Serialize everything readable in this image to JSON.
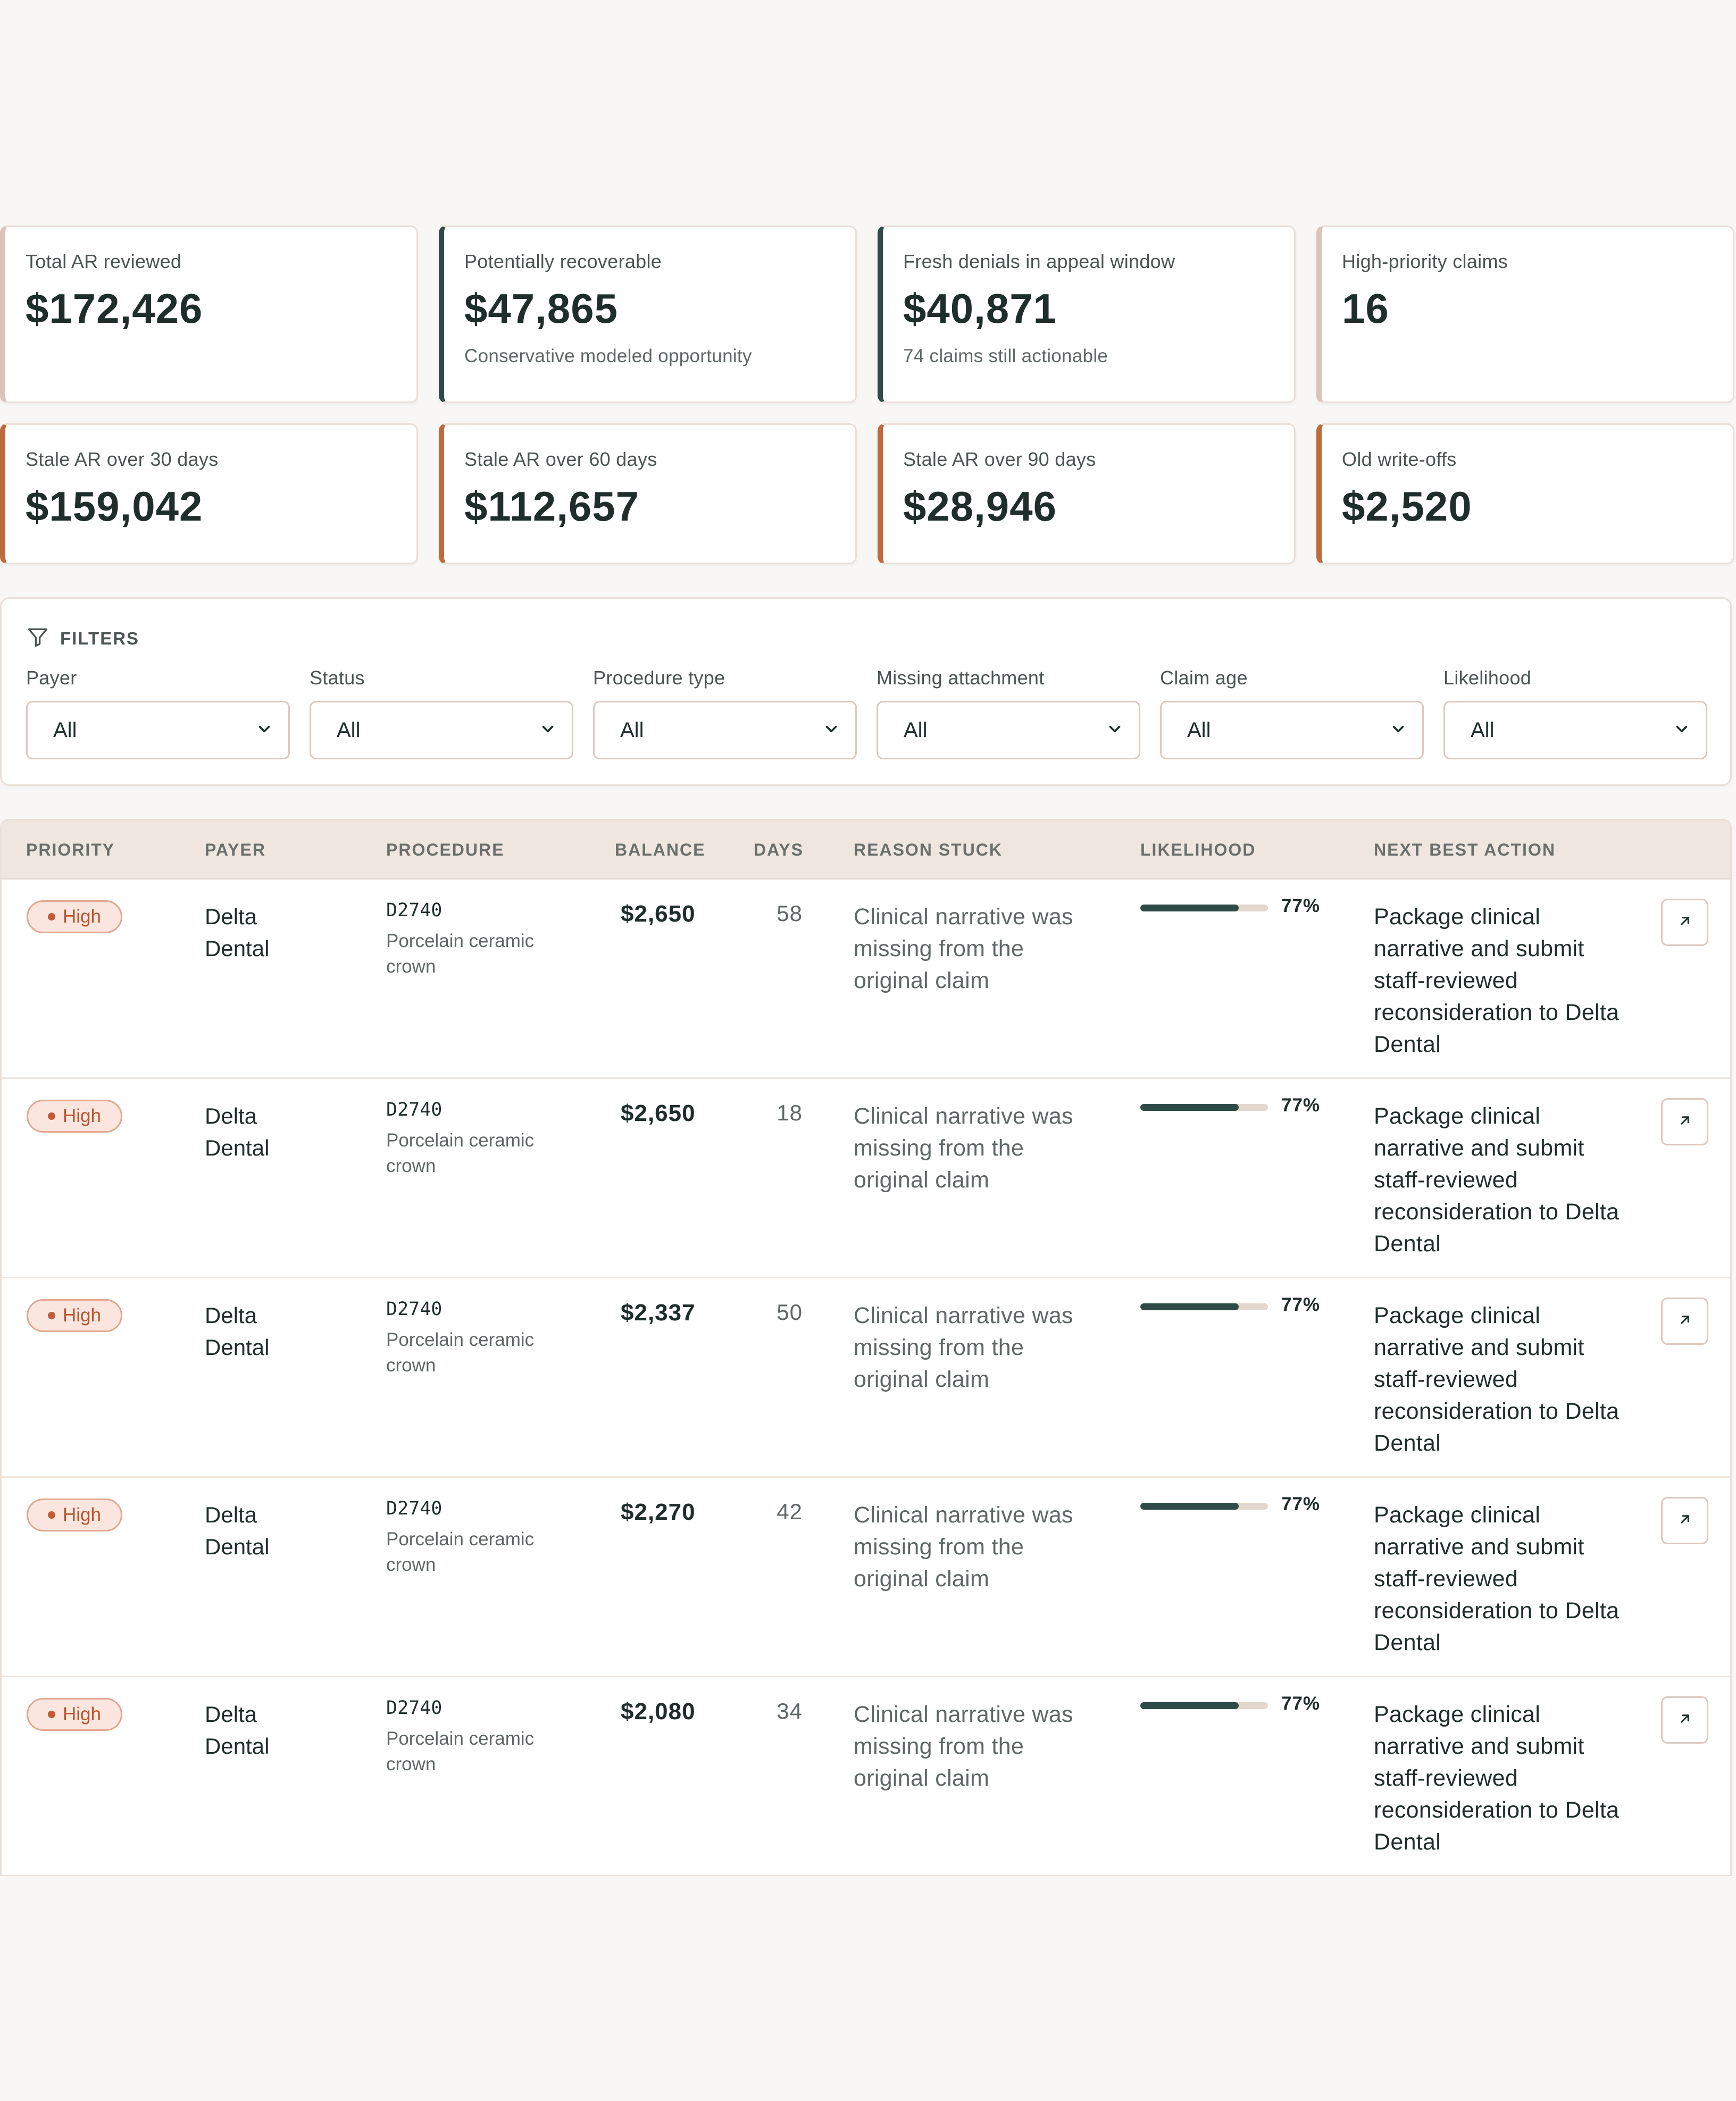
{
  "metrics_row1": [
    {
      "label": "Total AR reviewed",
      "value": "$172,426",
      "sub": "",
      "accent": "#dcc3b9"
    },
    {
      "label": "Potentially recoverable",
      "value": "$47,865",
      "sub": "Conservative modeled opportunity",
      "accent": "#2f4b48"
    },
    {
      "label": "Fresh denials in appeal window",
      "value": "$40,871",
      "sub": "74 claims still actionable",
      "accent": "#2f4b48"
    },
    {
      "label": "High-priority claims",
      "value": "16",
      "sub": "",
      "accent": "#dcc3b9"
    }
  ],
  "metrics_row2": [
    {
      "label": "Stale AR over 30 days",
      "value": "$159,042",
      "accent": "#bf6a3e"
    },
    {
      "label": "Stale AR over 60 days",
      "value": "$112,657",
      "accent": "#bf6a3e"
    },
    {
      "label": "Stale AR over 90 days",
      "value": "$28,946",
      "accent": "#bf6a3e"
    },
    {
      "label": "Old write-offs",
      "value": "$2,520",
      "accent": "#bf6a3e"
    }
  ],
  "filters": {
    "title": "FILTERS",
    "items": [
      {
        "label": "Payer",
        "value": "All"
      },
      {
        "label": "Status",
        "value": "All"
      },
      {
        "label": "Procedure type",
        "value": "All"
      },
      {
        "label": "Missing attachment",
        "value": "All"
      },
      {
        "label": "Claim age",
        "value": "All"
      },
      {
        "label": "Likelihood",
        "value": "All"
      }
    ]
  },
  "table": {
    "headers": {
      "priority": "PRIORITY",
      "payer": "PAYER",
      "procedure": "PROCEDURE",
      "balance": "BALANCE",
      "days": "DAYS",
      "reason": "REASON STUCK",
      "likelihood": "LIKELIHOOD",
      "action": "NEXT BEST ACTION"
    },
    "rows": [
      {
        "priority": "High",
        "payer": "Delta Dental",
        "code": "D2740",
        "procedure": "Porcelain ceramic crown",
        "balance": "$2,650",
        "days": "58",
        "reason": "Clinical narrative was missing from the original claim",
        "likelihood": 0.77,
        "likelihood_label": "77%",
        "action": "Package clinical narrative and submit staff-reviewed reconsideration to Delta Dental"
      },
      {
        "priority": "High",
        "payer": "Delta Dental",
        "code": "D2740",
        "procedure": "Porcelain ceramic crown",
        "balance": "$2,650",
        "days": "18",
        "reason": "Clinical narrative was missing from the original claim",
        "likelihood": 0.77,
        "likelihood_label": "77%",
        "action": "Package clinical narrative and submit staff-reviewed reconsideration to Delta Dental"
      },
      {
        "priority": "High",
        "payer": "Delta Dental",
        "code": "D2740",
        "procedure": "Porcelain ceramic crown",
        "balance": "$2,337",
        "days": "50",
        "reason": "Clinical narrative was missing from the original claim",
        "likelihood": 0.77,
        "likelihood_label": "77%",
        "action": "Package clinical narrative and submit staff-reviewed reconsideration to Delta Dental"
      },
      {
        "priority": "High",
        "payer": "Delta Dental",
        "code": "D2740",
        "procedure": "Porcelain ceramic crown",
        "balance": "$2,270",
        "days": "42",
        "reason": "Clinical narrative was missing from the original claim",
        "likelihood": 0.77,
        "likelihood_label": "77%",
        "action": "Package clinical narrative and submit staff-reviewed reconsideration to Delta Dental"
      },
      {
        "priority": "High",
        "payer": "Delta Dental",
        "code": "D2740",
        "procedure": "Porcelain ceramic crown",
        "balance": "$2,080",
        "days": "34",
        "reason": "Clinical narrative was missing from the original claim",
        "likelihood": 0.77,
        "likelihood_label": "77%",
        "action": "Package clinical narrative and submit staff-reviewed reconsideration to Delta Dental"
      }
    ]
  },
  "icons": {
    "filter": "filter-funnel-icon",
    "select": "chevron-down-icon",
    "open": "external-link-arrow-icon"
  }
}
